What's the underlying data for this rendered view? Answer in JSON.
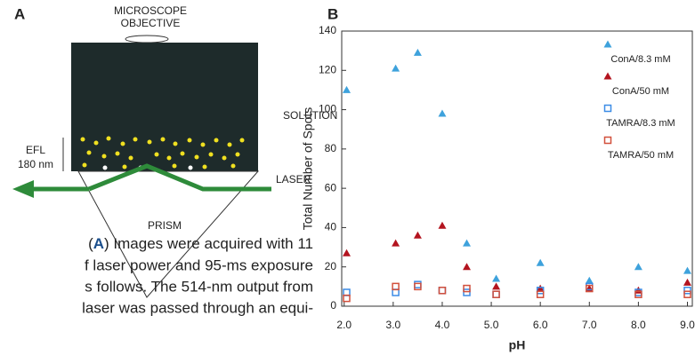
{
  "panel_a": {
    "label": "A",
    "objective": [
      "MICROSCOPE",
      "OBJECTIVE"
    ],
    "solution": "SOLUTION",
    "efl": [
      "EFL",
      "180 nm"
    ],
    "laser": "LASER",
    "prism": "PRISM"
  },
  "caption": {
    "first": [
      "(",
      "A",
      ") Images were acquired with 11"
    ],
    "lines": [
      "f laser power and 95-ms exposure",
      "s follows. The 514-nm output from",
      "laser was passed through an equi-"
    ]
  },
  "chart_data": {
    "type": "scatter",
    "panel_label": "B",
    "x_label": "pH",
    "y_label": "Total Number of Spots",
    "x": [
      2.05,
      3.05,
      3.5,
      4.0,
      4.5,
      5.1,
      6.0,
      7.0,
      8.0,
      9.0
    ],
    "series": [
      {
        "name": "ConA/8.3 mM",
        "color": "#3ea2dc",
        "marker": "triangle",
        "values": [
          110,
          121,
          129,
          98,
          32,
          14,
          22,
          13,
          20,
          18
        ]
      },
      {
        "name": "ConA/50 mM",
        "color": "#b3141f",
        "marker": "triangle",
        "values": [
          27,
          32,
          36,
          41,
          20,
          10,
          9,
          9,
          8,
          12
        ]
      },
      {
        "name": "TAMRA/8.3 mM",
        "color": "#3c8ce6",
        "marker": "square",
        "values": [
          7,
          7,
          11,
          8,
          7,
          6,
          8,
          10,
          7,
          8
        ]
      },
      {
        "name": "TAMRA/50 mM",
        "color": "#d2503c",
        "marker": "square",
        "values": [
          4,
          10,
          10,
          8,
          9,
          6,
          6,
          9,
          6,
          6
        ]
      }
    ],
    "xlim": [
      1.95,
      9.1
    ],
    "ylim": [
      0,
      140
    ],
    "xticks": [
      {
        "value": 2,
        "label": "2.0"
      },
      {
        "value": 3,
        "label": "3.0"
      },
      {
        "value": 4,
        "label": "4.0"
      },
      {
        "value": 5,
        "label": "5.0"
      },
      {
        "value": 6,
        "label": "6.0"
      },
      {
        "value": 7,
        "label": "7.0"
      },
      {
        "value": 8,
        "label": "8.0"
      },
      {
        "value": 9,
        "label": "9.0"
      }
    ],
    "yticks": [
      0,
      20,
      40,
      60,
      80,
      100,
      120,
      140
    ]
  }
}
